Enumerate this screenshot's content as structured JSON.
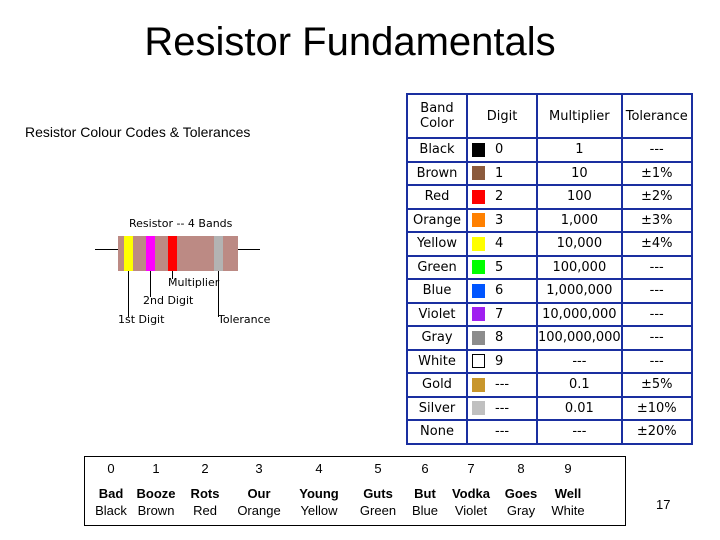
{
  "title": "Resistor Fundamentals",
  "subtitle": "Resistor Colour Codes & Tolerances",
  "diagram": {
    "heading": "Resistor -- 4 Bands",
    "labels": {
      "multiplier": "Multiplier",
      "second_digit": "2nd Digit",
      "first_digit": "1st Digit",
      "tolerance": "Tolerance"
    },
    "band_colors": [
      "#ffff00",
      "#ff00ff",
      "#ff0000",
      "#b3b3b3"
    ]
  },
  "table": {
    "headers": [
      "Band Color",
      "Digit",
      "Multiplier",
      "Tolerance"
    ],
    "rows": [
      {
        "color": "Black",
        "swatch": "#000000",
        "digit": "0",
        "multiplier": "1",
        "tolerance": "---"
      },
      {
        "color": "Brown",
        "swatch": "#8b5a3c",
        "digit": "1",
        "multiplier": "10",
        "tolerance": "±1%"
      },
      {
        "color": "Red",
        "swatch": "#ff0000",
        "digit": "2",
        "multiplier": "100",
        "tolerance": "±2%"
      },
      {
        "color": "Orange",
        "swatch": "#ff8000",
        "digit": "3",
        "multiplier": "1,000",
        "tolerance": "±3%"
      },
      {
        "color": "Yellow",
        "swatch": "#ffff00",
        "digit": "4",
        "multiplier": "10,000",
        "tolerance": "±4%"
      },
      {
        "color": "Green",
        "swatch": "#00ff00",
        "digit": "5",
        "multiplier": "100,000",
        "tolerance": "---"
      },
      {
        "color": "Blue",
        "swatch": "#0055ff",
        "digit": "6",
        "multiplier": "1,000,000",
        "tolerance": "---"
      },
      {
        "color": "Violet",
        "swatch": "#a020f0",
        "digit": "7",
        "multiplier": "10,000,000",
        "tolerance": "---"
      },
      {
        "color": "Gray",
        "swatch": "#8c8c8c",
        "digit": "8",
        "multiplier": "100,000,000",
        "tolerance": "---"
      },
      {
        "color": "White",
        "swatch": "#ffffff",
        "digit": "9",
        "multiplier": "---",
        "tolerance": "---"
      },
      {
        "color": "Gold",
        "swatch": "#c8962c",
        "digit": "---",
        "multiplier": "0.1",
        "tolerance": "±5%"
      },
      {
        "color": "Silver",
        "swatch": "#c0c0c0",
        "digit": "---",
        "multiplier": "0.01",
        "tolerance": "±10%"
      },
      {
        "color": "None",
        "swatch": "",
        "digit": "---",
        "multiplier": "---",
        "tolerance": "±20%"
      }
    ]
  },
  "mnemonic": {
    "digits": [
      "0",
      "1",
      "2",
      "3",
      "4",
      "5",
      "6",
      "7",
      "8",
      "9"
    ],
    "words": [
      "Bad",
      "Booze",
      "Rots",
      "Our",
      "Young",
      "Guts",
      "But",
      "Vodka",
      "Goes",
      "Well"
    ],
    "colors": [
      "Black",
      "Brown",
      "Red",
      "Orange",
      "Yellow",
      "Green",
      "Blue",
      "Violet",
      "Gray",
      "White"
    ]
  },
  "page_number": "17"
}
